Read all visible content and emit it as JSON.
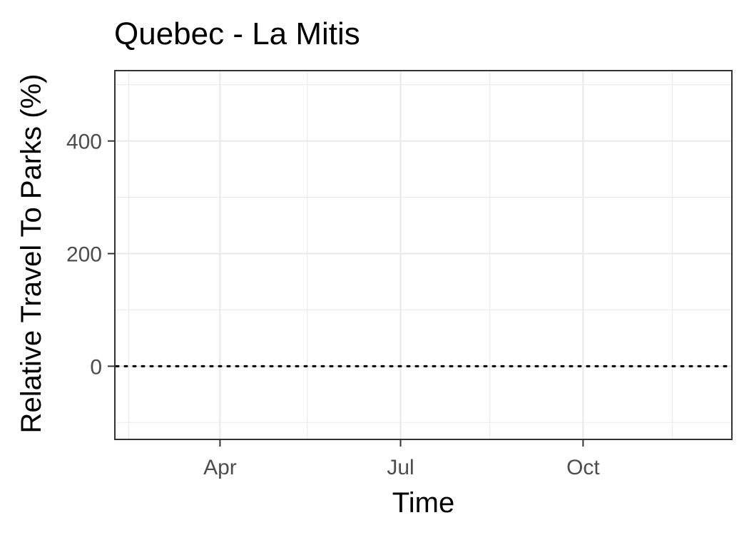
{
  "chart_data": {
    "type": "line",
    "title": "Quebec - La Mitis",
    "xlabel": "Time",
    "ylabel": "Relative Travel To Parks (%)",
    "x_ticks": [
      "Apr",
      "Jul",
      "Oct"
    ],
    "x_tick_values": [
      "2020-04-01",
      "2020-07-01",
      "2020-10-01"
    ],
    "x_minor_values": [
      "2020-02-15",
      "2020-05-15",
      "2020-08-15",
      "2020-11-15"
    ],
    "xlim": [
      "2020-02-08",
      "2020-12-15"
    ],
    "y_ticks": [
      0,
      200,
      400
    ],
    "y_minor": [
      -100,
      100,
      300,
      500
    ],
    "ylim": [
      -130,
      525
    ],
    "reference_line": {
      "y": 0,
      "style": "dotted",
      "color": "#000000"
    },
    "series": [],
    "grid": true,
    "legend": "none"
  }
}
